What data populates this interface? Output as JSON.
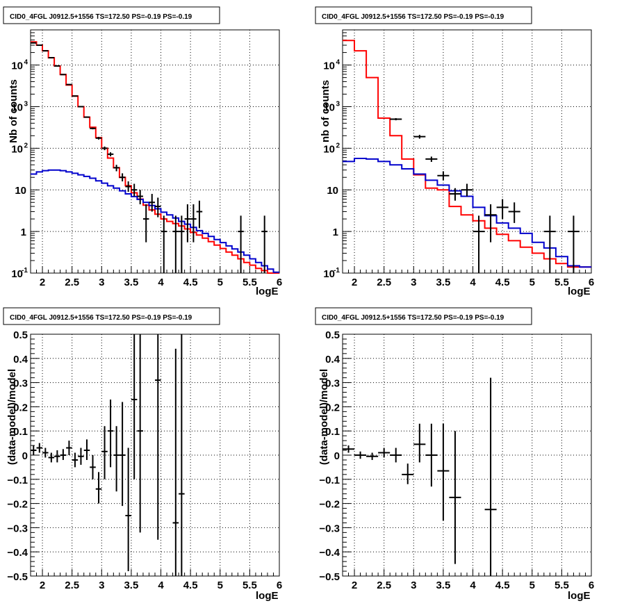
{
  "chart_data": [
    {
      "type": "line",
      "title": "CID0_4FGL J0912.5+1556 TS=172.50 PS=-0.19 PS=-0.19",
      "xlabel": "logE",
      "ylabel": "Nb of counts",
      "xlim": [
        1.8,
        6.0
      ],
      "ylim": [
        0.1,
        70000
      ],
      "yscale": "log",
      "grid": true,
      "x_ticks": [
        "2",
        "2.5",
        "3",
        "3.5",
        "4",
        "4.5",
        "5",
        "5.5",
        "6"
      ],
      "y_ticks": [
        "10^-1",
        "1",
        "10",
        "10^2",
        "10^3",
        "10^4"
      ],
      "series": [
        {
          "color": "#ff0000",
          "role": "total model",
          "bin_edges": [
            1.8,
            1.9,
            2.0,
            2.1,
            2.2,
            2.3,
            2.4,
            2.5,
            2.6,
            2.7,
            2.8,
            2.9,
            3.0,
            3.1,
            3.2,
            3.3,
            3.4,
            3.5,
            3.6,
            3.7,
            3.8,
            3.9,
            4.0,
            4.1,
            4.2,
            4.3,
            4.4,
            4.5,
            4.6,
            4.7,
            4.8,
            4.9,
            5.0,
            5.1,
            5.2,
            5.3,
            5.4,
            5.5,
            5.6,
            5.7,
            5.8,
            5.9,
            6.0
          ],
          "values": [
            36000,
            30000,
            22000,
            15000,
            9500,
            5900,
            3300,
            1800,
            1000,
            560,
            320,
            180,
            100,
            58,
            34,
            20,
            12.6,
            8.5,
            6.0,
            4.3,
            3.3,
            2.6,
            2.0,
            1.75,
            1.55,
            1.35,
            1.15,
            0.95,
            0.82,
            0.69,
            0.57,
            0.47,
            0.39,
            0.32,
            0.27,
            0.22,
            0.18,
            0.155,
            0.13,
            0.115,
            0.1,
            0.1
          ]
        },
        {
          "color": "#0000cc",
          "role": "background model",
          "bin_edges": [
            1.8,
            1.9,
            2.0,
            2.1,
            2.2,
            2.3,
            2.4,
            2.5,
            2.6,
            2.7,
            2.8,
            2.9,
            3.0,
            3.1,
            3.2,
            3.3,
            3.4,
            3.5,
            3.6,
            3.7,
            3.8,
            3.9,
            4.0,
            4.1,
            4.2,
            4.3,
            4.4,
            4.5,
            4.6,
            4.7,
            4.8,
            4.9,
            5.0,
            5.1,
            5.2,
            5.3,
            5.4,
            5.5,
            5.6,
            5.7,
            5.8,
            5.9,
            6.0
          ],
          "values": [
            24,
            27,
            29,
            30,
            30,
            29,
            27,
            25,
            23,
            21,
            19,
            16.5,
            14.5,
            12.5,
            11,
            9.5,
            8,
            6.9,
            5.9,
            5,
            4.2,
            3.5,
            2.9,
            2.5,
            2.1,
            1.75,
            1.5,
            1.25,
            1.05,
            0.9,
            0.76,
            0.64,
            0.54,
            0.45,
            0.38,
            0.32,
            0.27,
            0.22,
            0.18,
            0.15,
            0.125,
            0.105
          ]
        },
        {
          "color": "#000000",
          "role": "data",
          "points": [
            {
              "x": 1.85,
              "y": 34000,
              "ylo": 33500,
              "yhi": 34500,
              "dx": 0.05
            },
            {
              "x": 1.95,
              "y": 30000,
              "ylo": 29600,
              "yhi": 30400,
              "dx": 0.05
            },
            {
              "x": 2.05,
              "y": 22000,
              "ylo": 21700,
              "yhi": 22300,
              "dx": 0.05
            },
            {
              "x": 2.15,
              "y": 15000,
              "ylo": 14800,
              "yhi": 15200,
              "dx": 0.05
            },
            {
              "x": 2.25,
              "y": 9500,
              "ylo": 9350,
              "yhi": 9650,
              "dx": 0.05
            },
            {
              "x": 2.35,
              "y": 5900,
              "ylo": 5800,
              "yhi": 6000,
              "dx": 0.05
            },
            {
              "x": 2.45,
              "y": 3400,
              "ylo": 3340,
              "yhi": 3460,
              "dx": 0.05
            },
            {
              "x": 2.55,
              "y": 1800,
              "ylo": 1760,
              "yhi": 1840,
              "dx": 0.05
            },
            {
              "x": 2.65,
              "y": 1000,
              "ylo": 970,
              "yhi": 1030,
              "dx": 0.05
            },
            {
              "x": 2.75,
              "y": 560,
              "ylo": 540,
              "yhi": 580,
              "dx": 0.05
            },
            {
              "x": 2.85,
              "y": 300,
              "ylo": 285,
              "yhi": 315,
              "dx": 0.05
            },
            {
              "x": 2.95,
              "y": 175,
              "ylo": 162,
              "yhi": 188,
              "dx": 0.05
            },
            {
              "x": 3.05,
              "y": 100,
              "ylo": 90,
              "yhi": 110,
              "dx": 0.05
            },
            {
              "x": 3.15,
              "y": 72,
              "ylo": 64,
              "yhi": 80,
              "dx": 0.05
            },
            {
              "x": 3.25,
              "y": 34,
              "ylo": 28,
              "yhi": 40,
              "dx": 0.05
            },
            {
              "x": 3.35,
              "y": 20,
              "ylo": 16,
              "yhi": 25,
              "dx": 0.05
            },
            {
              "x": 3.45,
              "y": 12,
              "ylo": 9,
              "yhi": 16,
              "dx": 0.05
            },
            {
              "x": 3.55,
              "y": 10,
              "ylo": 7,
              "yhi": 14,
              "dx": 0.05
            },
            {
              "x": 3.65,
              "y": 7,
              "ylo": 4.5,
              "yhi": 10,
              "dx": 0.05
            },
            {
              "x": 3.75,
              "y": 2,
              "ylo": 0.55,
              "yhi": 4.5,
              "dx": 0.05
            },
            {
              "x": 3.85,
              "y": 5,
              "ylo": 3,
              "yhi": 8,
              "dx": 0.05
            },
            {
              "x": 3.95,
              "y": 4,
              "ylo": 2.2,
              "yhi": 6.5,
              "dx": 0.05
            },
            {
              "x": 4.05,
              "y": 1,
              "ylo": 0.1,
              "yhi": 2.4,
              "dx": 0.05
            },
            {
              "x": 4.25,
              "y": 1,
              "ylo": 0.1,
              "yhi": 2.4,
              "dx": 0.05
            },
            {
              "x": 4.35,
              "y": 1,
              "ylo": 0.1,
              "yhi": 2.4,
              "dx": 0.05
            },
            {
              "x": 4.45,
              "y": 2,
              "ylo": 0.55,
              "yhi": 4.5,
              "dx": 0.05
            },
            {
              "x": 4.55,
              "y": 2,
              "ylo": 0.55,
              "yhi": 4.5,
              "dx": 0.05
            },
            {
              "x": 4.65,
              "y": 3,
              "ylo": 1.2,
              "yhi": 5.5,
              "dx": 0.05
            },
            {
              "x": 5.35,
              "y": 1,
              "ylo": 0.1,
              "yhi": 2.4,
              "dx": 0.05
            },
            {
              "x": 5.75,
              "y": 1,
              "ylo": 0.1,
              "yhi": 2.4,
              "dx": 0.05
            }
          ]
        }
      ]
    },
    {
      "type": "line",
      "title": "CID0_4FGL J0912.5+1556 TS=172.50 PS=-0.19 PS=-0.19",
      "xlabel": "logE",
      "ylabel": "nb of counts",
      "xlim": [
        1.8,
        6.0
      ],
      "ylim": [
        0.1,
        70000
      ],
      "yscale": "log",
      "grid": true,
      "x_ticks": [
        "2",
        "2.5",
        "3",
        "3.5",
        "4",
        "4.5",
        "5",
        "5.5",
        "6"
      ],
      "y_ticks": [
        "10^-1",
        "1",
        "10",
        "10^2",
        "10^3",
        "10^4"
      ],
      "series": [
        {
          "color": "#ff0000",
          "role": "total model",
          "bin_edges": [
            1.8,
            2.0,
            2.2,
            2.4,
            2.6,
            2.8,
            3.0,
            3.2,
            3.4,
            3.6,
            3.8,
            4.0,
            4.2,
            4.4,
            4.6,
            4.8,
            5.0,
            5.2,
            5.4,
            5.6,
            5.8,
            6.0
          ],
          "values": [
            39000,
            22000,
            5000,
            530,
            200,
            55,
            23,
            11,
            10,
            4,
            2.5,
            1.8,
            1.2,
            0.85,
            0.6,
            0.42,
            0.3,
            0.22,
            0.17,
            0.14,
            0.14
          ]
        },
        {
          "color": "#0000cc",
          "role": "background model",
          "bin_edges": [
            1.8,
            2.0,
            2.2,
            2.4,
            2.6,
            2.8,
            3.0,
            3.2,
            3.4,
            3.6,
            3.8,
            4.0,
            4.2,
            4.4,
            4.6,
            4.8,
            5.0,
            5.2,
            5.4,
            5.6,
            5.8,
            6.0
          ],
          "values": [
            48,
            57,
            55,
            48,
            40,
            32,
            24,
            17,
            13,
            9.5,
            7,
            3.8,
            2.4,
            1.6,
            1.2,
            0.9,
            0.55,
            0.4,
            0.25,
            0.15,
            0.14
          ]
        },
        {
          "color": "#000000",
          "role": "data",
          "points": [
            {
              "x": 2.7,
              "y": 500,
              "ylo": 470,
              "yhi": 530,
              "dx": 0.1
            },
            {
              "x": 3.1,
              "y": 190,
              "ylo": 170,
              "yhi": 210,
              "dx": 0.1
            },
            {
              "x": 3.3,
              "y": 55,
              "ylo": 47,
              "yhi": 63,
              "dx": 0.1
            },
            {
              "x": 3.5,
              "y": 22,
              "ylo": 17,
              "yhi": 28,
              "dx": 0.1
            },
            {
              "x": 3.7,
              "y": 8,
              "ylo": 5.5,
              "yhi": 11,
              "dx": 0.1
            },
            {
              "x": 3.9,
              "y": 10,
              "ylo": 7,
              "yhi": 14,
              "dx": 0.1
            },
            {
              "x": 4.1,
              "y": 1,
              "ylo": 0.1,
              "yhi": 2.4,
              "dx": 0.1
            },
            {
              "x": 4.3,
              "y": 2.5,
              "ylo": 0.55,
              "yhi": 4.5,
              "dx": 0.1
            },
            {
              "x": 4.5,
              "y": 3.8,
              "ylo": 2,
              "yhi": 6,
              "dx": 0.1
            },
            {
              "x": 4.7,
              "y": 3,
              "ylo": 1.6,
              "yhi": 5,
              "dx": 0.1
            },
            {
              "x": 5.3,
              "y": 1,
              "ylo": 0.1,
              "yhi": 2.4,
              "dx": 0.1
            },
            {
              "x": 5.7,
              "y": 1,
              "ylo": 0.1,
              "yhi": 2.4,
              "dx": 0.1
            }
          ]
        }
      ]
    },
    {
      "type": "scatter",
      "title": "CID0_4FGL J0912.5+1556 TS=172.50 PS=-0.19 PS=-0.19",
      "xlabel": "logE",
      "ylabel": "(data-model)/model",
      "xlim": [
        1.8,
        6.0
      ],
      "ylim": [
        -0.5,
        0.5
      ],
      "grid": true,
      "x_ticks": [
        "2",
        "2.5",
        "3",
        "3.5",
        "4",
        "4.5",
        "5",
        "5.5",
        "6"
      ],
      "y_ticks": [
        "-0.5",
        "-0.4",
        "-0.3",
        "-0.2",
        "-0.1",
        "0",
        "0.1",
        "0.2",
        "0.3",
        "0.4",
        "0.5"
      ],
      "series": [
        {
          "color": "#000000",
          "role": "residuals",
          "points": [
            {
              "x": 1.85,
              "y": 0.02,
              "ylo": 0.0,
              "yhi": 0.04,
              "dx": 0.05
            },
            {
              "x": 1.95,
              "y": 0.03,
              "ylo": 0.01,
              "yhi": 0.05,
              "dx": 0.05
            },
            {
              "x": 2.05,
              "y": 0.01,
              "ylo": -0.01,
              "yhi": 0.03,
              "dx": 0.05
            },
            {
              "x": 2.15,
              "y": -0.01,
              "ylo": -0.03,
              "yhi": 0.01,
              "dx": 0.05
            },
            {
              "x": 2.25,
              "y": -0.005,
              "ylo": -0.03,
              "yhi": 0.02,
              "dx": 0.05
            },
            {
              "x": 2.35,
              "y": 0.0,
              "ylo": -0.02,
              "yhi": 0.025,
              "dx": 0.05
            },
            {
              "x": 2.45,
              "y": 0.03,
              "ylo": 0.0,
              "yhi": 0.06,
              "dx": 0.05
            },
            {
              "x": 2.55,
              "y": -0.02,
              "ylo": -0.05,
              "yhi": 0.01,
              "dx": 0.05
            },
            {
              "x": 2.65,
              "y": -0.005,
              "ylo": -0.04,
              "yhi": 0.03,
              "dx": 0.05
            },
            {
              "x": 2.75,
              "y": 0.02,
              "ylo": -0.02,
              "yhi": 0.065,
              "dx": 0.05
            },
            {
              "x": 2.85,
              "y": -0.05,
              "ylo": -0.1,
              "yhi": 0.0,
              "dx": 0.05
            },
            {
              "x": 2.95,
              "y": -0.14,
              "ylo": -0.2,
              "yhi": -0.07,
              "dx": 0.05
            },
            {
              "x": 3.05,
              "y": 0.015,
              "ylo": -0.1,
              "yhi": 0.12,
              "dx": 0.05
            },
            {
              "x": 3.15,
              "y": 0.1,
              "ylo": -0.05,
              "yhi": 0.23,
              "dx": 0.05
            },
            {
              "x": 3.25,
              "y": 0.0,
              "ylo": -0.15,
              "yhi": 0.12,
              "dx": 0.05
            },
            {
              "x": 3.35,
              "y": 0.0,
              "ylo": -0.21,
              "yhi": 0.22,
              "dx": 0.05
            },
            {
              "x": 3.45,
              "y": -0.25,
              "ylo": -0.48,
              "yhi": 0.03,
              "dx": 0.05
            },
            {
              "x": 3.55,
              "y": 0.23,
              "ylo": -0.1,
              "yhi": 0.5,
              "dx": 0.05
            },
            {
              "x": 3.65,
              "y": 0.1,
              "ylo": -0.32,
              "yhi": 0.5,
              "dx": 0.05
            },
            {
              "x": 3.95,
              "y": 0.31,
              "ylo": -0.35,
              "yhi": 0.5,
              "dx": 0.05
            },
            {
              "x": 4.25,
              "y": -0.28,
              "ylo": -0.5,
              "yhi": 0.44,
              "dx": 0.05
            },
            {
              "x": 4.35,
              "y": -0.16,
              "ylo": -0.5,
              "yhi": 0.5,
              "dx": 0.05
            }
          ]
        }
      ]
    },
    {
      "type": "scatter",
      "title": "CID0_4FGL J0912.5+1556 TS=172.50 PS=-0.19 PS=-0.19",
      "xlabel": "logE",
      "ylabel": "(data-model)/model",
      "xlim": [
        1.8,
        6.0
      ],
      "ylim": [
        -0.5,
        0.5
      ],
      "grid": true,
      "x_ticks": [
        "2",
        "2.5",
        "3",
        "3.5",
        "4",
        "4.5",
        "5",
        "5.5",
        "6"
      ],
      "y_ticks": [
        "-0.5",
        "-0.4",
        "-0.3",
        "-0.2",
        "-0.1",
        "0",
        "0.1",
        "0.2",
        "0.3",
        "0.4",
        "0.5"
      ],
      "series": [
        {
          "color": "#000000",
          "role": "residuals",
          "points": [
            {
              "x": 1.9,
              "y": 0.025,
              "ylo": 0.01,
              "yhi": 0.04,
              "dx": 0.1
            },
            {
              "x": 2.1,
              "y": 0.0,
              "ylo": -0.015,
              "yhi": 0.015,
              "dx": 0.1
            },
            {
              "x": 2.3,
              "y": -0.005,
              "ylo": -0.02,
              "yhi": 0.01,
              "dx": 0.1
            },
            {
              "x": 2.5,
              "y": 0.01,
              "ylo": -0.01,
              "yhi": 0.03,
              "dx": 0.1
            },
            {
              "x": 2.7,
              "y": 0.0,
              "ylo": -0.03,
              "yhi": 0.03,
              "dx": 0.1
            },
            {
              "x": 2.9,
              "y": -0.08,
              "ylo": -0.12,
              "yhi": -0.035,
              "dx": 0.1
            },
            {
              "x": 3.1,
              "y": 0.045,
              "ylo": -0.03,
              "yhi": 0.13,
              "dx": 0.1
            },
            {
              "x": 3.3,
              "y": 0.0,
              "ylo": -0.13,
              "yhi": 0.13,
              "dx": 0.1
            },
            {
              "x": 3.5,
              "y": -0.065,
              "ylo": -0.27,
              "yhi": 0.13,
              "dx": 0.1
            },
            {
              "x": 3.7,
              "y": -0.175,
              "ylo": -0.45,
              "yhi": 0.1,
              "dx": 0.1
            },
            {
              "x": 4.3,
              "y": -0.225,
              "ylo": -0.5,
              "yhi": 0.32,
              "dx": 0.1
            }
          ]
        }
      ]
    }
  ]
}
